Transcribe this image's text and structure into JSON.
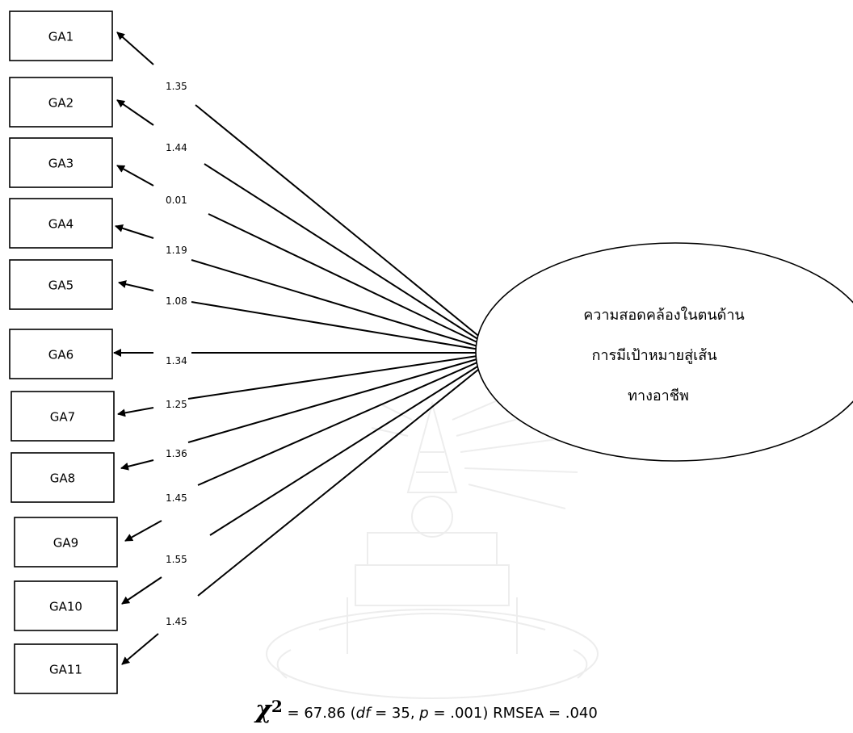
{
  "latent": {
    "lines": [
      "ความสอดคล้องในตนด้าน",
      "การมีเป้าหมายสู่เส้น",
      "ทางอาชีพ"
    ]
  },
  "indicators": [
    {
      "label": "GA1",
      "loading": "1.35"
    },
    {
      "label": "GA2",
      "loading": "1.44"
    },
    {
      "label": "GA3",
      "loading": "0.01"
    },
    {
      "label": "GA4",
      "loading": "1.19"
    },
    {
      "label": "GA5",
      "loading": "1.08"
    },
    {
      "label": "GA6",
      "loading": "1.34"
    },
    {
      "label": "GA7",
      "loading": "1.25"
    },
    {
      "label": "GA8",
      "loading": "1.36"
    },
    {
      "label": "GA9",
      "loading": "1.45"
    },
    {
      "label": "GA10",
      "loading": "1.55"
    },
    {
      "label": "GA11",
      "loading": "1.45"
    }
  ],
  "fit": {
    "chi_symbol": "χ",
    "chi_sup": "2",
    "chi_value": " = 67.86 (",
    "df_label": "df",
    "df_value": " = 35, ",
    "p_label": "p",
    "p_value": " = .001) RMSEA = .040"
  }
}
